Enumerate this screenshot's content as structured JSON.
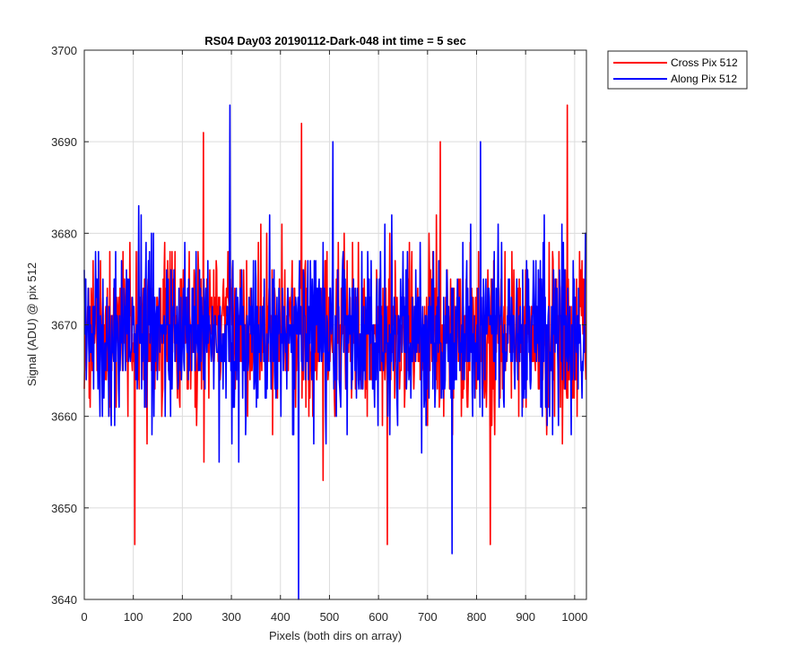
{
  "chart_data": {
    "type": "line",
    "title": "RS04 Day03 20190112-Dark-048 int time = 5 sec",
    "xlabel": "Pixels (both dirs on array)",
    "ylabel": "Signal (ADU) @ pix 512",
    "xlim": [
      0,
      1024
    ],
    "ylim": [
      3640,
      3700
    ],
    "xticks": [
      0,
      100,
      200,
      300,
      400,
      500,
      600,
      700,
      800,
      900,
      1000
    ],
    "yticks": [
      3640,
      3650,
      3660,
      3670,
      3680,
      3690,
      3700
    ],
    "xtick_labels": [
      "0",
      "100",
      "200",
      "300",
      "400",
      "500",
      "600",
      "700",
      "800",
      "900",
      "1000"
    ],
    "ytick_labels": [
      "3640",
      "3650",
      "3660",
      "3670",
      "3680",
      "3690",
      "3700"
    ],
    "grid": true,
    "legend_position": "outside-top-right",
    "series": [
      {
        "name": "Cross Pix 512",
        "color": "#ff0000",
        "points": 1024,
        "mean": 3669,
        "spread": 4.5,
        "min": 3646,
        "max": 3694,
        "key_points": [
          [
            103,
            3646
          ],
          [
            243,
            3691
          ],
          [
            443,
            3692
          ],
          [
            618,
            3646
          ],
          [
            726,
            3690
          ],
          [
            828,
            3646
          ],
          [
            985,
            3694
          ]
        ]
      },
      {
        "name": "Along Pix 512",
        "color": "#0000ff",
        "points": 1024,
        "mean": 3669,
        "spread": 4.5,
        "min": 3640,
        "max": 3694,
        "key_points": [
          [
            297,
            3694
          ],
          [
            437,
            3640
          ],
          [
            507,
            3690
          ],
          [
            750,
            3645
          ],
          [
            808,
            3690
          ],
          [
            1022,
            3680
          ]
        ]
      }
    ]
  }
}
